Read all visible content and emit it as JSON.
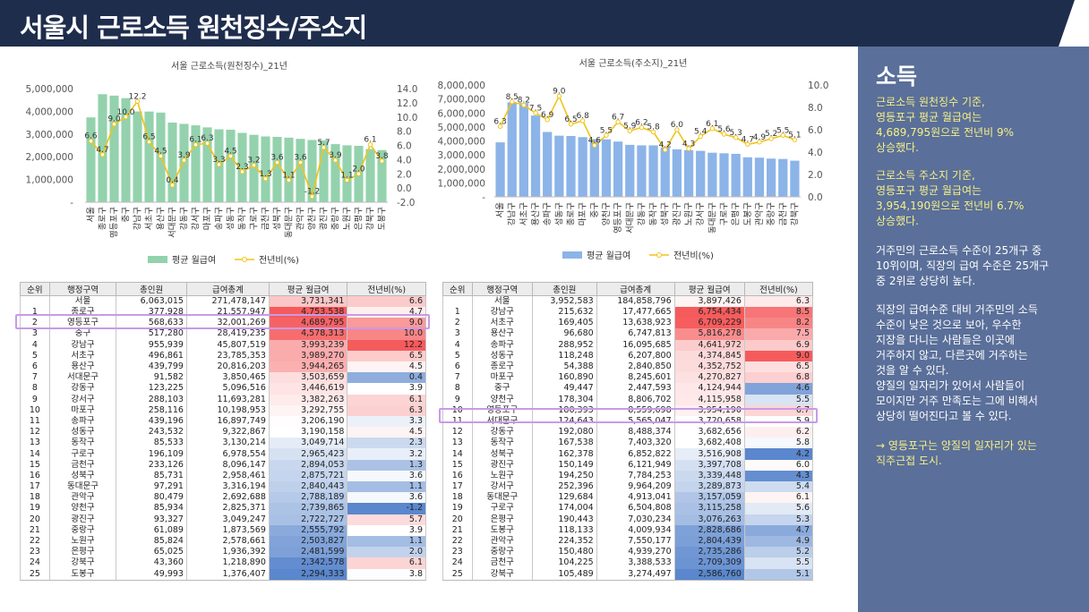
{
  "page": {
    "title": "서울시 근로소득 원천징수/주소지"
  },
  "colors": {
    "header": "#1f2d4d",
    "sidebar": "#5a6f99",
    "green_bar": "#93d2ad",
    "blue_bar": "#8cb4e8",
    "line": "#f0c419",
    "highlight": "#c89ae8"
  },
  "sidebar": {
    "heading": "소득",
    "p1": [
      "근로소득 원천징수 기준,",
      "영등포구 평균 월급여는",
      "4,689,795원으로 전년비 9%",
      "상승했다."
    ],
    "p2": [
      "근로소득 주소지 기준,",
      "영등포구 평균 월급여는",
      "3,954,190원으로 전년비 6.7%",
      "상승했다."
    ],
    "p3": [
      "거주민의 근로소득 수준이 25개구 중",
      "10위이며, 직장의 급여 수준은 25개구",
      "중 2위로 상당히 높다."
    ],
    "p4": [
      "직장의 급여수준 대비 거주민의 소득",
      "수준이 낮은 것으로 보아, 우수한",
      "지장을 다니는 사람들은 이곳에",
      "거주하지 않고, 다른곳에 거주하는",
      "것을 알 수 있다.",
      "양질의 일자리가 있어서 사람들이",
      "모이지만 거주 만족도는 그에 비해서",
      "상당히 떨어진다고 볼 수 있다."
    ],
    "p5": [
      "→ 영등포구는 양질의 일자리가 있는",
      "직주근접 도시."
    ]
  },
  "table_headers": [
    "순위",
    "행정구역",
    "총인원",
    "급여총계",
    "평균 월급여",
    "전년비(%)"
  ],
  "chart_data": [
    {
      "type": "bar",
      "title": "서울 근로소득(원천징수)_21년",
      "categories": [
        "서울",
        "종로구",
        "영등포구",
        "중구",
        "강남구",
        "서초구",
        "용산구",
        "서대문구",
        "강동구",
        "강서구",
        "마포구",
        "송파구",
        "성동구",
        "동작구",
        "구로구",
        "금천구",
        "성북구",
        "동대문구",
        "관악구",
        "양천구",
        "광진구",
        "중랑구",
        "노원구",
        "은평구",
        "강북구",
        "도봉구"
      ],
      "series": [
        {
          "name": "평균 월급여",
          "values": [
            3731341,
            4753538,
            4689795,
            4578313,
            3993239,
            3989270,
            3944265,
            3503659,
            3446619,
            3382263,
            3292755,
            3206190,
            3190158,
            3049714,
            2965423,
            2894053,
            2875721,
            2840443,
            2788189,
            2739865,
            2722727,
            2555792,
            2503827,
            2481599,
            2342578,
            2294333
          ]
        },
        {
          "name": "전년비(%)",
          "values": [
            6.6,
            4.7,
            9.0,
            10.0,
            12.2,
            6.5,
            4.5,
            0.4,
            3.9,
            6.1,
            6.3,
            3.3,
            4.5,
            2.3,
            3.2,
            1.3,
            3.6,
            1.1,
            3.6,
            -1.2,
            5.7,
            3.9,
            1.1,
            2.0,
            6.1,
            3.8
          ]
        }
      ],
      "y_ticks": [
        "5,000,000",
        "4,000,000",
        "3,000,000",
        "2,000,000",
        "1,000,000",
        "-"
      ],
      "y2_ticks": [
        "14.0",
        "12.0",
        "10.0",
        "8.0",
        "6.0",
        "4.0",
        "2.0",
        "0.0",
        "-2.0"
      ],
      "ylim": [
        0,
        5000000
      ],
      "y2lim": [
        -2,
        14
      ],
      "rows": [
        [
          "",
          "서울",
          "6,063,015",
          "271,478,147",
          "3,731,341",
          "6.6"
        ],
        [
          "1",
          "종로구",
          "377,928",
          "21,557,947",
          "4,753,538",
          "4.7"
        ],
        [
          "2",
          "영등포구",
          "568,633",
          "32,001,269",
          "4,689,795",
          "9.0"
        ],
        [
          "3",
          "중구",
          "517,280",
          "28,419,235",
          "4,578,313",
          "10.0"
        ],
        [
          "4",
          "강남구",
          "955,939",
          "45,807,519",
          "3,993,239",
          "12.2"
        ],
        [
          "5",
          "서초구",
          "496,861",
          "23,785,353",
          "3,989,270",
          "6.5"
        ],
        [
          "6",
          "용산구",
          "439,799",
          "20,816,203",
          "3,944,265",
          "4.5"
        ],
        [
          "7",
          "서대문구",
          "91,582",
          "3,850,465",
          "3,503,659",
          "0.4"
        ],
        [
          "8",
          "강동구",
          "123,225",
          "5,096,516",
          "3,446,619",
          "3.9"
        ],
        [
          "9",
          "강서구",
          "288,103",
          "11,693,281",
          "3,382,263",
          "6.1"
        ],
        [
          "10",
          "마포구",
          "258,116",
          "10,198,953",
          "3,292,755",
          "6.3"
        ],
        [
          "11",
          "송파구",
          "439,196",
          "16,897,749",
          "3,206,190",
          "3.3"
        ],
        [
          "12",
          "성동구",
          "243,532",
          "9,322,867",
          "3,190,158",
          "4.5"
        ],
        [
          "13",
          "동작구",
          "85,533",
          "3,130,214",
          "3,049,714",
          "2.3"
        ],
        [
          "14",
          "구로구",
          "196,109",
          "6,978,554",
          "2,965,423",
          "3.2"
        ],
        [
          "15",
          "금천구",
          "233,126",
          "8,096,147",
          "2,894,053",
          "1.3"
        ],
        [
          "16",
          "성북구",
          "85,731",
          "2,958,461",
          "2,875,721",
          "3.6"
        ],
        [
          "17",
          "동대문구",
          "97,291",
          "3,316,194",
          "2,840,443",
          "1.1"
        ],
        [
          "18",
          "관악구",
          "80,479",
          "2,692,688",
          "2,788,189",
          "3.6"
        ],
        [
          "19",
          "양천구",
          "85,934",
          "2,825,371",
          "2,739,865",
          "-1.2"
        ],
        [
          "20",
          "광진구",
          "93,327",
          "3,049,247",
          "2,722,727",
          "5.7"
        ],
        [
          "21",
          "중랑구",
          "61,089",
          "1,873,569",
          "2,555,792",
          "3.9"
        ],
        [
          "22",
          "노원구",
          "85,824",
          "2,578,661",
          "2,503,827",
          "1.1"
        ],
        [
          "23",
          "은평구",
          "65,025",
          "1,936,392",
          "2,481,599",
          "2.0"
        ],
        [
          "24",
          "강북구",
          "43,360",
          "1,218,890",
          "2,342,578",
          "6.1"
        ],
        [
          "25",
          "도봉구",
          "49,993",
          "1,376,407",
          "2,294,333",
          "3.8"
        ]
      ]
    },
    {
      "type": "bar",
      "title": "서울 근로소득(주소지)_21년",
      "categories": [
        "서울",
        "강남구",
        "서초구",
        "용산구",
        "송파구",
        "성동구",
        "종로구",
        "마포구",
        "중구",
        "양천구",
        "영등포구",
        "서대문구",
        "강동구",
        "동작구",
        "성북구",
        "광진구",
        "노원구",
        "강서구",
        "동대문구",
        "구로구",
        "은평구",
        "도봉구",
        "관악구",
        "중랑구",
        "금천구",
        "강북구"
      ],
      "series": [
        {
          "name": "평균 월급여",
          "values": [
            3897426,
            6754434,
            6709229,
            5816278,
            4641972,
            4374845,
            4352752,
            4270827,
            4124944,
            4115958,
            3954190,
            3720658,
            3682656,
            3682408,
            3516908,
            3397708,
            3339448,
            3289873,
            3157059,
            3115258,
            3076263,
            2828686,
            2804439,
            2735286,
            2709309,
            2586760
          ]
        },
        {
          "name": "전년비(%)",
          "values": [
            6.3,
            8.5,
            8.2,
            7.5,
            6.9,
            9.0,
            6.5,
            6.8,
            4.6,
            5.5,
            6.7,
            5.9,
            6.2,
            5.8,
            4.2,
            6.0,
            4.3,
            5.4,
            6.1,
            5.6,
            5.3,
            4.7,
            4.9,
            5.2,
            5.5,
            5.1
          ]
        }
      ],
      "y_ticks": [
        "8,000,000",
        "7,000,000",
        "6,000,000",
        "5,000,000",
        "4,000,000",
        "3,000,000",
        "2,000,000",
        "1,000,000",
        "-"
      ],
      "y2_ticks": [
        "10.0",
        "8.0",
        "6.0",
        "4.0",
        "2.0",
        "0.0"
      ],
      "ylim": [
        0,
        8000000
      ],
      "y2lim": [
        0,
        10
      ],
      "rows": [
        [
          "",
          "서울",
          "3,952,583",
          "184,858,796",
          "3,897,426",
          "6.3"
        ],
        [
          "1",
          "강남구",
          "215,632",
          "17,477,665",
          "6,754,434",
          "8.5"
        ],
        [
          "2",
          "서초구",
          "169,405",
          "13,638,923",
          "6,709,229",
          "8.2"
        ],
        [
          "3",
          "용산구",
          "96,680",
          "6,747,813",
          "5,816,278",
          "7.5"
        ],
        [
          "4",
          "송파구",
          "288,952",
          "16,095,685",
          "4,641,972",
          "6.9"
        ],
        [
          "5",
          "성동구",
          "118,248",
          "6,207,800",
          "4,374,845",
          "9.0"
        ],
        [
          "6",
          "종로구",
          "54,388",
          "2,840,850",
          "4,352,752",
          "6.5"
        ],
        [
          "7",
          "마포구",
          "160,890",
          "8,245,601",
          "4,270,827",
          "6.8"
        ],
        [
          "8",
          "중구",
          "49,447",
          "2,447,593",
          "4,124,944",
          "4.6"
        ],
        [
          "9",
          "양천구",
          "178,304",
          "8,806,702",
          "4,115,958",
          "5.5"
        ],
        [
          "10",
          "영등포구",
          "180,393",
          "8,559,698",
          "3,954,190",
          "6.7"
        ],
        [
          "11",
          "서대문구",
          "124,643",
          "5,565,047",
          "3,720,658",
          "5.9"
        ],
        [
          "12",
          "강동구",
          "192,080",
          "8,488,374",
          "3,682,656",
          "6.2"
        ],
        [
          "13",
          "동작구",
          "167,538",
          "7,403,320",
          "3,682,408",
          "5.8"
        ],
        [
          "14",
          "성북구",
          "162,378",
          "6,852,822",
          "3,516,908",
          "4.2"
        ],
        [
          "15",
          "광진구",
          "150,149",
          "6,121,949",
          "3,397,708",
          "6.0"
        ],
        [
          "16",
          "노원구",
          "194,250",
          "7,784,253",
          "3,339,448",
          "4.3"
        ],
        [
          "17",
          "강서구",
          "252,396",
          "9,964,209",
          "3,289,873",
          "5.4"
        ],
        [
          "18",
          "동대문구",
          "129,684",
          "4,913,041",
          "3,157,059",
          "6.1"
        ],
        [
          "19",
          "구로구",
          "174,004",
          "6,504,808",
          "3,115,258",
          "5.6"
        ],
        [
          "20",
          "은평구",
          "190,443",
          "7,030,234",
          "3,076,263",
          "5.3"
        ],
        [
          "21",
          "도봉구",
          "118,133",
          "4,009,934",
          "2,828,686",
          "4.7"
        ],
        [
          "22",
          "관악구",
          "224,352",
          "7,550,177",
          "2,804,439",
          "4.9"
        ],
        [
          "23",
          "중랑구",
          "150,480",
          "4,939,270",
          "2,735,286",
          "5.2"
        ],
        [
          "24",
          "금천구",
          "104,225",
          "3,388,533",
          "2,709,309",
          "5.5"
        ],
        [
          "25",
          "강북구",
          "105,489",
          "3,274,497",
          "2,586,760",
          "5.1"
        ]
      ]
    }
  ]
}
